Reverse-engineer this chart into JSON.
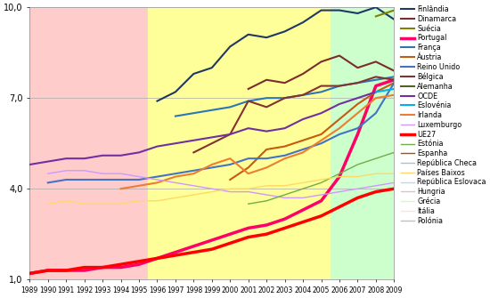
{
  "years": [
    1989,
    1990,
    1991,
    1992,
    1993,
    1994,
    1995,
    1996,
    1997,
    1998,
    1999,
    2000,
    2001,
    2002,
    2003,
    2004,
    2005,
    2006,
    2007,
    2008,
    2009
  ],
  "series": {
    "Finlândia": [
      null,
      null,
      null,
      null,
      null,
      null,
      null,
      6.9,
      7.2,
      7.8,
      8.0,
      8.7,
      9.1,
      9.0,
      9.2,
      9.5,
      9.9,
      9.9,
      9.8,
      10.0,
      9.6
    ],
    "Dinamarca": [
      null,
      null,
      null,
      null,
      null,
      null,
      null,
      null,
      null,
      null,
      null,
      null,
      7.3,
      7.6,
      7.5,
      7.8,
      8.2,
      8.4,
      8.0,
      8.2,
      7.9
    ],
    "Suécia": [
      null,
      null,
      null,
      null,
      null,
      null,
      null,
      null,
      null,
      null,
      null,
      null,
      null,
      null,
      null,
      null,
      null,
      null,
      null,
      9.7,
      9.9
    ],
    "Portugal": [
      1.2,
      1.3,
      1.3,
      1.3,
      1.4,
      1.4,
      1.5,
      1.7,
      1.9,
      2.1,
      2.3,
      2.5,
      2.7,
      2.8,
      3.0,
      3.3,
      3.6,
      4.4,
      5.8,
      7.4,
      7.6
    ],
    "França": [
      null,
      null,
      null,
      null,
      null,
      null,
      null,
      null,
      6.4,
      6.5,
      6.6,
      6.7,
      6.9,
      7.0,
      7.0,
      7.1,
      7.2,
      7.4,
      7.5,
      7.6,
      7.7
    ],
    "Áustria": [
      null,
      null,
      null,
      null,
      null,
      null,
      null,
      null,
      null,
      null,
      null,
      4.3,
      4.7,
      5.3,
      5.4,
      5.6,
      5.8,
      6.3,
      6.8,
      7.2,
      7.5
    ],
    "Reino Unido": [
      null,
      4.2,
      4.3,
      4.3,
      4.3,
      4.3,
      4.3,
      4.4,
      4.5,
      4.6,
      4.7,
      4.8,
      5.0,
      5.0,
      5.1,
      5.3,
      5.5,
      5.8,
      6.0,
      6.5,
      7.5
    ],
    "Bélgica": [
      null,
      null,
      null,
      null,
      null,
      null,
      null,
      null,
      null,
      5.2,
      5.5,
      5.8,
      6.9,
      6.7,
      7.0,
      7.1,
      7.4,
      7.4,
      7.5,
      7.7,
      7.6
    ],
    "Alemanha": [
      null,
      null,
      null,
      null,
      null,
      null,
      null,
      null,
      null,
      null,
      null,
      null,
      null,
      null,
      null,
      null,
      null,
      null,
      null,
      null,
      7.1
    ],
    "OCDE": [
      4.8,
      4.9,
      5.0,
      5.0,
      5.1,
      5.1,
      5.2,
      5.4,
      5.5,
      5.6,
      5.7,
      5.8,
      6.0,
      5.9,
      6.0,
      6.3,
      6.5,
      6.8,
      7.0,
      7.2,
      null
    ],
    "Eslovénia": [
      null,
      null,
      null,
      null,
      null,
      null,
      null,
      null,
      null,
      null,
      null,
      null,
      null,
      null,
      null,
      null,
      null,
      null,
      null,
      7.2,
      7.3
    ],
    "Irlanda": [
      null,
      null,
      null,
      null,
      null,
      4.0,
      4.1,
      4.2,
      4.4,
      4.5,
      4.8,
      5.0,
      4.5,
      4.7,
      5.0,
      5.2,
      5.6,
      6.0,
      6.5,
      7.0,
      7.1
    ],
    "Luxemburgo": [
      null,
      4.5,
      4.6,
      4.6,
      4.5,
      4.5,
      4.4,
      4.3,
      4.2,
      4.1,
      4.0,
      3.9,
      3.9,
      3.8,
      3.7,
      3.7,
      3.8,
      3.9,
      4.0,
      4.1,
      4.2
    ],
    "UE27": [
      1.2,
      1.3,
      1.3,
      1.4,
      1.4,
      1.5,
      1.6,
      1.7,
      1.8,
      1.9,
      2.0,
      2.2,
      2.4,
      2.5,
      2.7,
      2.9,
      3.1,
      3.4,
      3.7,
      3.9,
      4.0
    ],
    "Estónia": [
      null,
      null,
      null,
      null,
      null,
      null,
      null,
      null,
      null,
      null,
      null,
      null,
      3.5,
      3.6,
      3.8,
      4.0,
      4.2,
      4.5,
      4.8,
      5.0,
      5.2
    ],
    "Espanha": [
      null,
      null,
      null,
      null,
      null,
      null,
      null,
      null,
      null,
      null,
      null,
      null,
      null,
      null,
      null,
      null,
      null,
      null,
      null,
      null,
      null
    ],
    "República Checa": [
      null,
      null,
      null,
      null,
      null,
      null,
      null,
      null,
      null,
      null,
      null,
      null,
      null,
      null,
      null,
      null,
      null,
      null,
      null,
      null,
      null
    ],
    "Países Baixos": [
      null,
      3.5,
      3.6,
      3.5,
      3.5,
      3.5,
      3.6,
      3.6,
      3.7,
      3.8,
      3.9,
      4.0,
      4.0,
      4.1,
      4.1,
      4.2,
      4.3,
      4.4,
      4.4,
      4.5,
      4.5
    ],
    "República Eslovaca": [
      null,
      null,
      null,
      null,
      null,
      null,
      null,
      null,
      null,
      null,
      null,
      null,
      null,
      null,
      null,
      null,
      null,
      null,
      null,
      null,
      null
    ],
    "Hungria": [
      null,
      null,
      null,
      null,
      null,
      null,
      null,
      null,
      null,
      null,
      null,
      null,
      null,
      null,
      null,
      null,
      null,
      null,
      null,
      null,
      null
    ],
    "Grécia": [
      null,
      null,
      null,
      null,
      null,
      null,
      null,
      null,
      null,
      null,
      null,
      null,
      null,
      null,
      null,
      null,
      null,
      null,
      null,
      null,
      null
    ],
    "Itália": [
      null,
      null,
      null,
      null,
      null,
      null,
      null,
      null,
      null,
      null,
      null,
      null,
      null,
      null,
      null,
      null,
      null,
      null,
      null,
      null,
      null
    ],
    "Polónia": [
      null,
      null,
      null,
      null,
      null,
      null,
      null,
      null,
      null,
      null,
      null,
      null,
      null,
      null,
      null,
      null,
      null,
      null,
      null,
      null,
      null
    ]
  },
  "colors": {
    "Finlândia": "#1F3864",
    "Dinamarca": "#7B2C2C",
    "Suécia": "#808000",
    "Portugal": "#FF0066",
    "França": "#2E75B6",
    "Áustria": "#C55A11",
    "Reino Unido": "#4472C4",
    "Bélgica": "#833232",
    "Alemanha": "#4F6228",
    "OCDE": "#7030A0",
    "Eslovénia": "#00B0F0",
    "Irlanda": "#ED7D31",
    "Luxemburgo": "#CC99FF",
    "UE27": "#FF0000",
    "Estónia": "#70AD47",
    "Espanha": "#7B5E3A",
    "República Checa": "#9DC3E6",
    "Países Baixos": "#FFD966",
    "República Eslovaca": "#BDD7EE",
    "Hungria": "#F4B8C1",
    "Grécia": "#E2EFDA",
    "Itália": "#FCE4D6",
    "Polónia": "#BFBFBF"
  },
  "linewidths": {
    "Finlândia": 1.5,
    "Dinamarca": 1.5,
    "Suécia": 1.5,
    "Portugal": 2.5,
    "França": 1.5,
    "Áustria": 1.5,
    "Reino Unido": 1.5,
    "Bélgica": 1.5,
    "Alemanha": 1.5,
    "OCDE": 1.5,
    "Eslovénia": 1.5,
    "Irlanda": 1.5,
    "Luxemburgo": 1.0,
    "UE27": 2.5,
    "Estónia": 1.0,
    "Espanha": 1.0,
    "República Checa": 1.0,
    "Países Baixos": 1.0,
    "República Eslovaca": 1.0,
    "Hungria": 1.0,
    "Grécia": 1.0,
    "Itália": 1.0,
    "Polónia": 1.0
  },
  "bg_regions": [
    {
      "xmin": 1989,
      "xmax": 1995.5,
      "color": "#FFCCCC"
    },
    {
      "xmin": 1995.5,
      "xmax": 2005.5,
      "color": "#FFFF99"
    },
    {
      "xmin": 2005.5,
      "xmax": 2009,
      "color": "#CCFFCC"
    }
  ],
  "ylim": [
    1.0,
    10.0
  ],
  "yticks": [
    1.0,
    4.0,
    7.0,
    10.0
  ],
  "legend_order": [
    "Finlândia",
    "Dinamarca",
    "Suécia",
    "Portugal",
    "França",
    "Áustria",
    "Reino Unido",
    "Bélgica",
    "Alemanha",
    "OCDE",
    "Eslovénia",
    "Irlanda",
    "Luxemburgo",
    "UE27",
    "Estónia",
    "Espanha",
    "República Checa",
    "Países Baixos",
    "República Eslovaca",
    "Hungria",
    "Grécia",
    "Itália",
    "Polónia"
  ]
}
